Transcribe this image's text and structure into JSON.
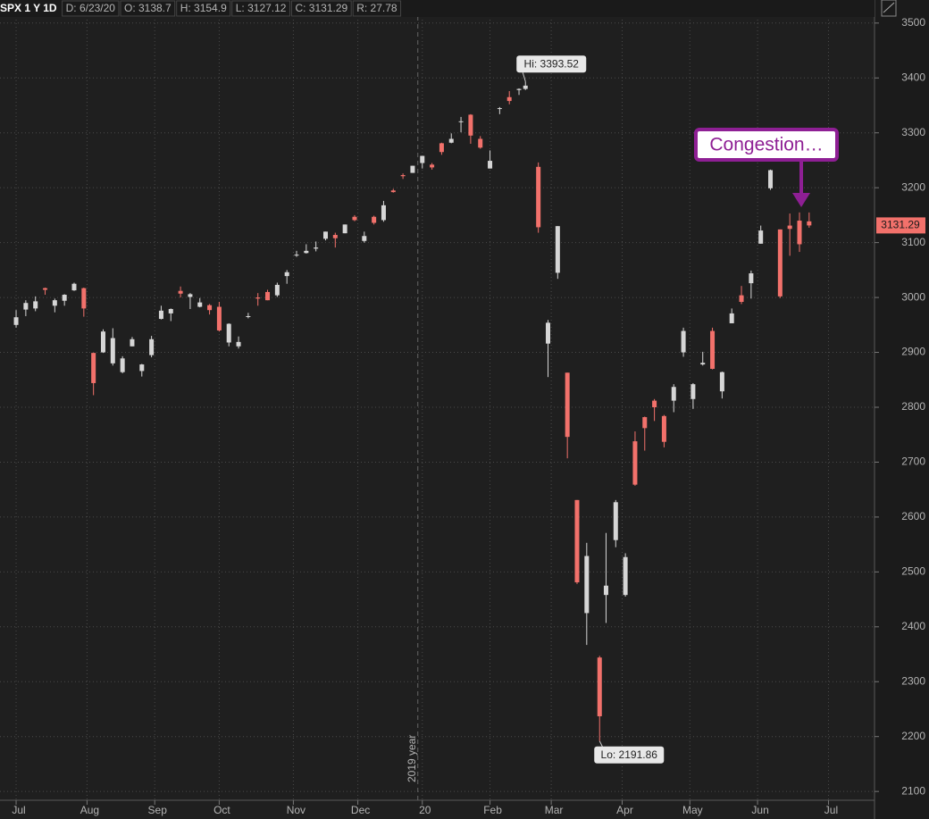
{
  "chart_data": {
    "type": "candlestick",
    "header": {
      "symbol": "SPX 1 Y 1D",
      "fields": [
        "D: 6/23/20",
        "O: 3138.7",
        "H: 3154.9",
        "L: 3127.12",
        "C: 3131.29",
        "R: 27.78"
      ]
    },
    "x": [
      0,
      3,
      6,
      9,
      12,
      15,
      18,
      21,
      24,
      27,
      30,
      33,
      36,
      39,
      42,
      45,
      48,
      51,
      54,
      57,
      60,
      63,
      66,
      69,
      72,
      75,
      78,
      81,
      84,
      87,
      90,
      93,
      96,
      99,
      102,
      105,
      108,
      111,
      114,
      117,
      120,
      123,
      126,
      129,
      132,
      135,
      138,
      141,
      144,
      147,
      150,
      153,
      156,
      158,
      162,
      165,
      168,
      171,
      174,
      177,
      181,
      183,
      186,
      189,
      192,
      195,
      198,
      201,
      204,
      207,
      210,
      213,
      216,
      219,
      222,
      225,
      228,
      231,
      234,
      237,
      240,
      243,
      246
    ],
    "open": [
      2950,
      2978,
      2980,
      3017,
      2985,
      2994,
      3013,
      3017,
      2899,
      2900,
      2880,
      2864,
      2911,
      2866,
      2895,
      2961,
      2971,
      3012,
      3001,
      2983,
      2986,
      2983,
      2918,
      2911,
      2965,
      3000,
      3010,
      3004,
      3039,
      3078,
      3081,
      3089,
      3107,
      3114,
      3117,
      3147,
      3103,
      3147,
      3141,
      3195,
      3223,
      3227,
      3245,
      3242,
      3281,
      3282,
      3321,
      3333,
      3289,
      3235,
      3344,
      3365,
      3378,
      3380,
      3238,
      2916,
      3045,
      2863,
      2631,
      2425,
      2344,
      2458,
      2558,
      2458,
      2738,
      2782,
      2812,
      2784,
      2812,
      2900,
      2815,
      2878,
      2939,
      2829,
      2953,
      3004,
      3026,
      3098,
      3199,
      3124,
      3131,
      3140,
      3138.7
    ],
    "high": [
      2977,
      2995,
      3002,
      3018,
      2998,
      3006,
      3027,
      3018,
      2899,
      2942,
      2944,
      2893,
      2928,
      2879,
      2930,
      2985,
      2980,
      3020,
      3008,
      2999,
      2988,
      2992,
      2953,
      2929,
      2972,
      3008,
      3014,
      3027,
      3050,
      3085,
      3097,
      3102,
      3120,
      3118,
      3133,
      3150,
      3120,
      3149,
      3176,
      3198,
      3226,
      3240,
      3258,
      3245,
      3282,
      3299,
      3329,
      3334,
      3294,
      3268,
      3347,
      3376,
      3381,
      3393.52,
      3246,
      2959,
      3130,
      2863,
      2631,
      2553,
      2347,
      2571,
      2631,
      2534,
      2756,
      2783,
      2815,
      2786,
      2842,
      2945,
      2844,
      2901,
      2945,
      2865,
      2980,
      3021,
      3049,
      3131,
      3233,
      3124,
      3153,
      3155,
      3154.9
    ],
    "low": [
      2945,
      2966,
      2975,
      3005,
      2973,
      2985,
      3012,
      2965,
      2822,
      2899,
      2876,
      2862,
      2911,
      2856,
      2891,
      2960,
      2957,
      3000,
      2979,
      2982,
      2969,
      2938,
      2911,
      2907,
      2962,
      2985,
      2995,
      3001,
      3025,
      3074,
      3080,
      3084,
      3104,
      3091,
      3117,
      3139,
      3100,
      3133,
      3138,
      3191,
      3216,
      3227,
      3235,
      3233,
      3260,
      3281,
      3301,
      3280,
      3271,
      3235,
      3334,
      3352,
      3369,
      3378,
      3118,
      2855,
      3034,
      2707,
      2478,
      2367,
      2191.86,
      2407,
      2545,
      2455,
      2657,
      2721,
      2775,
      2727,
      2791,
      2892,
      2797,
      2876,
      2869,
      2816,
      2953,
      2988,
      2998,
      3098,
      3196,
      2999,
      3076,
      3083,
      3127.12
    ],
    "close": [
      2964,
      2990,
      2993,
      3014,
      2995,
      3005,
      3025,
      2980,
      2844,
      2938,
      2926,
      2889,
      2924,
      2878,
      2924,
      2976,
      2979,
      3007,
      3006,
      2991,
      2977,
      2940,
      2952,
      2919,
      2966,
      2998,
      2995,
      3023,
      3046,
      3078,
      3085,
      3091,
      3120,
      3108,
      3133,
      3141,
      3112,
      3136,
      3168,
      3192,
      3221,
      3240,
      3258,
      3237,
      3265,
      3289,
      3321,
      3295,
      3273,
      3249,
      3345,
      3358,
      3380,
      3386,
      3128,
      2954,
      3130,
      2746,
      2481,
      2529,
      2237,
      2475,
      2627,
      2527,
      2659,
      2762,
      2800,
      2737,
      2837,
      2939,
      2842,
      2881,
      2870,
      2864,
      2971,
      2992,
      3044,
      3122,
      3232,
      3002,
      3125,
      3097,
      3131.29
    ],
    "up_color": "#d6d6d6",
    "down_color": "#f2716b",
    "xlim": [
      -5,
      266
    ],
    "ylim": [
      2084,
      3542
    ],
    "xticks": [
      {
        "value": 0,
        "label": "Jul"
      },
      {
        "value": 22,
        "label": "Aug"
      },
      {
        "value": 43,
        "label": "Sep"
      },
      {
        "value": 63,
        "label": "Oct"
      },
      {
        "value": 86,
        "label": "Nov"
      },
      {
        "value": 106,
        "label": "Dec"
      },
      {
        "value": 126,
        "label": "20"
      },
      {
        "value": 147,
        "label": "Feb"
      },
      {
        "value": 166,
        "label": "Mar"
      },
      {
        "value": 188,
        "label": "Apr"
      },
      {
        "value": 209,
        "label": "May"
      },
      {
        "value": 230,
        "label": "Jun"
      },
      {
        "value": 252,
        "label": "Jul"
      }
    ],
    "yticks": [
      2100,
      2200,
      2300,
      2400,
      2500,
      2600,
      2700,
      2800,
      2900,
      3000,
      3100,
      3200,
      3300,
      3400,
      3500
    ],
    "grid": true,
    "year_divider_label": "2019 year",
    "hi_label": "Hi: 3393.52",
    "lo_label": "Lo: 2191.86",
    "annotation": "Congestion…"
  }
}
